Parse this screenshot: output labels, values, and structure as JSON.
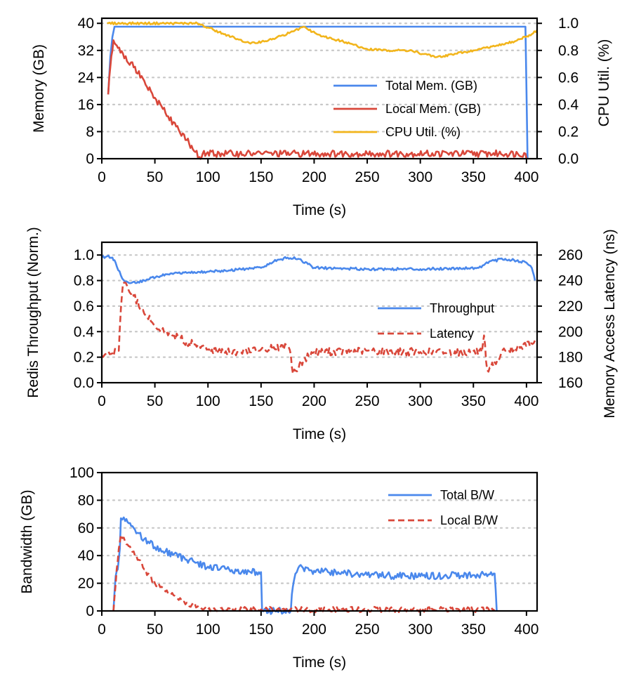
{
  "colors": {
    "blue": "#4a88ec",
    "red": "#d9473a",
    "yellow": "#f2b51c"
  },
  "chart_data": [
    {
      "id": "memory",
      "type": "line",
      "xlabel": "Time (s)",
      "ylabel": "Memory (GB)",
      "y2label": "CPU Util. (%)",
      "xlim": [
        0,
        410
      ],
      "ylim": [
        0,
        41.5
      ],
      "y2lim": [
        0,
        1.0375
      ],
      "xticks": [
        0,
        50,
        100,
        150,
        200,
        250,
        300,
        350,
        400
      ],
      "yticks": [
        0,
        8,
        16,
        24,
        32,
        40
      ],
      "y2ticks": [
        "0.0",
        "0.2",
        "0.4",
        "0.6",
        "0.8",
        "1.0"
      ],
      "legend_position": "center-right",
      "series": [
        {
          "name": "Total Mem. (GB)",
          "axis": "left",
          "color": "blue",
          "style": "solid",
          "x": [
            6,
            8,
            10,
            12,
            200,
            399,
            400,
            401
          ],
          "values": [
            19,
            30,
            36,
            39,
            39,
            39,
            20,
            0
          ]
        },
        {
          "name": "Local Mem. (GB)",
          "axis": "left",
          "color": "red",
          "style": "solid",
          "jagged": 1.0,
          "x": [
            6,
            8,
            11,
            14,
            20,
            30,
            40,
            50,
            60,
            70,
            80,
            88,
            92,
            95,
            150,
            250,
            399,
            400
          ],
          "values": [
            19,
            27,
            35,
            33.5,
            31,
            27,
            23,
            18,
            13.5,
            9.5,
            5.5,
            2,
            0.5,
            1.5,
            1.5,
            1.5,
            1.5,
            0
          ]
        },
        {
          "name": "CPU Util. (%)",
          "axis": "right",
          "color": "yellow",
          "style": "solid",
          "jagged": 0.008,
          "x": [
            5,
            90,
            93,
            100,
            115,
            130,
            140,
            160,
            180,
            190,
            195,
            210,
            230,
            250,
            270,
            290,
            315,
            330,
            350,
            370,
            390,
            405,
            410
          ],
          "values": [
            1.0,
            1.0,
            0.99,
            0.97,
            0.92,
            0.88,
            0.85,
            0.88,
            0.94,
            0.975,
            0.95,
            0.9,
            0.86,
            0.81,
            0.8,
            0.8,
            0.75,
            0.77,
            0.8,
            0.83,
            0.87,
            0.92,
            0.95
          ]
        }
      ]
    },
    {
      "id": "redis",
      "type": "line",
      "xlabel": "Time (s)",
      "ylabel": "Redis Throughput (Norm.)",
      "y2label": "Memory Access Latency (ns)",
      "xlim": [
        0,
        410
      ],
      "ylim": [
        0,
        1.1
      ],
      "y2lim": [
        160,
        270
      ],
      "xticks": [
        0,
        50,
        100,
        150,
        200,
        250,
        300,
        350,
        400
      ],
      "yticks": [
        "0.0",
        "0.2",
        "0.4",
        "0.6",
        "0.8",
        "1.0"
      ],
      "y2ticks": [
        160,
        180,
        200,
        220,
        240,
        260
      ],
      "legend_position": "center-right",
      "series": [
        {
          "name": "Throughput",
          "axis": "left",
          "color": "blue",
          "style": "solid",
          "jagged": 0.01,
          "x": [
            0,
            5,
            10,
            13,
            18,
            22,
            27,
            40,
            60,
            80,
            100,
            120,
            150,
            162,
            175,
            185,
            200,
            250,
            300,
            355,
            365,
            380,
            400,
            405,
            408
          ],
          "values": [
            0.98,
            0.99,
            0.98,
            0.94,
            0.84,
            0.79,
            0.78,
            0.8,
            0.85,
            0.86,
            0.87,
            0.88,
            0.9,
            0.95,
            0.98,
            0.97,
            0.9,
            0.89,
            0.89,
            0.9,
            0.95,
            0.97,
            0.94,
            0.9,
            0.8
          ]
        },
        {
          "name": "Latency",
          "axis": "right",
          "color": "red",
          "style": "dashed",
          "jagged": 3,
          "x": [
            0,
            10,
            16,
            18,
            20,
            25,
            30,
            40,
            50,
            60,
            80,
            100,
            130,
            150,
            175,
            178,
            180,
            190,
            200,
            250,
            300,
            358,
            360,
            363,
            370,
            380,
            395,
            408
          ],
          "values": [
            181,
            183,
            185,
            218,
            238,
            233,
            228,
            214,
            205,
            200,
            192,
            186,
            184,
            186,
            188,
            182,
            167,
            178,
            184,
            185,
            184,
            184,
            197,
            170,
            176,
            185,
            188,
            193
          ]
        }
      ]
    },
    {
      "id": "bandwidth",
      "type": "line",
      "xlabel": "Time (s)",
      "ylabel": "Bandwidth (GB)",
      "xlim": [
        0,
        410
      ],
      "ylim": [
        0,
        100
      ],
      "xticks": [
        0,
        50,
        100,
        150,
        200,
        250,
        300,
        350,
        400
      ],
      "yticks": [
        0,
        20,
        40,
        60,
        80,
        100
      ],
      "legend_position": "top-right",
      "series": [
        {
          "name": "Total B/W",
          "axis": "left",
          "color": "blue",
          "style": "solid",
          "jagged": 2.5,
          "x": [
            11,
            13,
            15,
            17,
            18,
            22,
            30,
            40,
            50,
            60,
            80,
            100,
            120,
            140,
            148,
            150,
            151,
            178,
            179,
            181,
            185,
            200,
            250,
            300,
            350,
            369,
            370,
            372
          ],
          "values": [
            0,
            25,
            30,
            45,
            67,
            65,
            60,
            52,
            46,
            43,
            37,
            32,
            30,
            28,
            28,
            28,
            0,
            0,
            12,
            22,
            31,
            29,
            26,
            25,
            26,
            27,
            27,
            0
          ]
        },
        {
          "name": "Local B/W",
          "axis": "left",
          "color": "red",
          "style": "dashed",
          "jagged": 2,
          "x": [
            11,
            14,
            16,
            18,
            22,
            30,
            40,
            50,
            60,
            70,
            80,
            90,
            95,
            100,
            150,
            200,
            250,
            300,
            370
          ],
          "values": [
            0,
            30,
            45,
            55,
            50,
            43,
            30,
            20,
            14,
            10,
            6,
            3,
            1,
            1,
            1,
            1,
            1,
            1,
            1
          ]
        }
      ]
    }
  ]
}
